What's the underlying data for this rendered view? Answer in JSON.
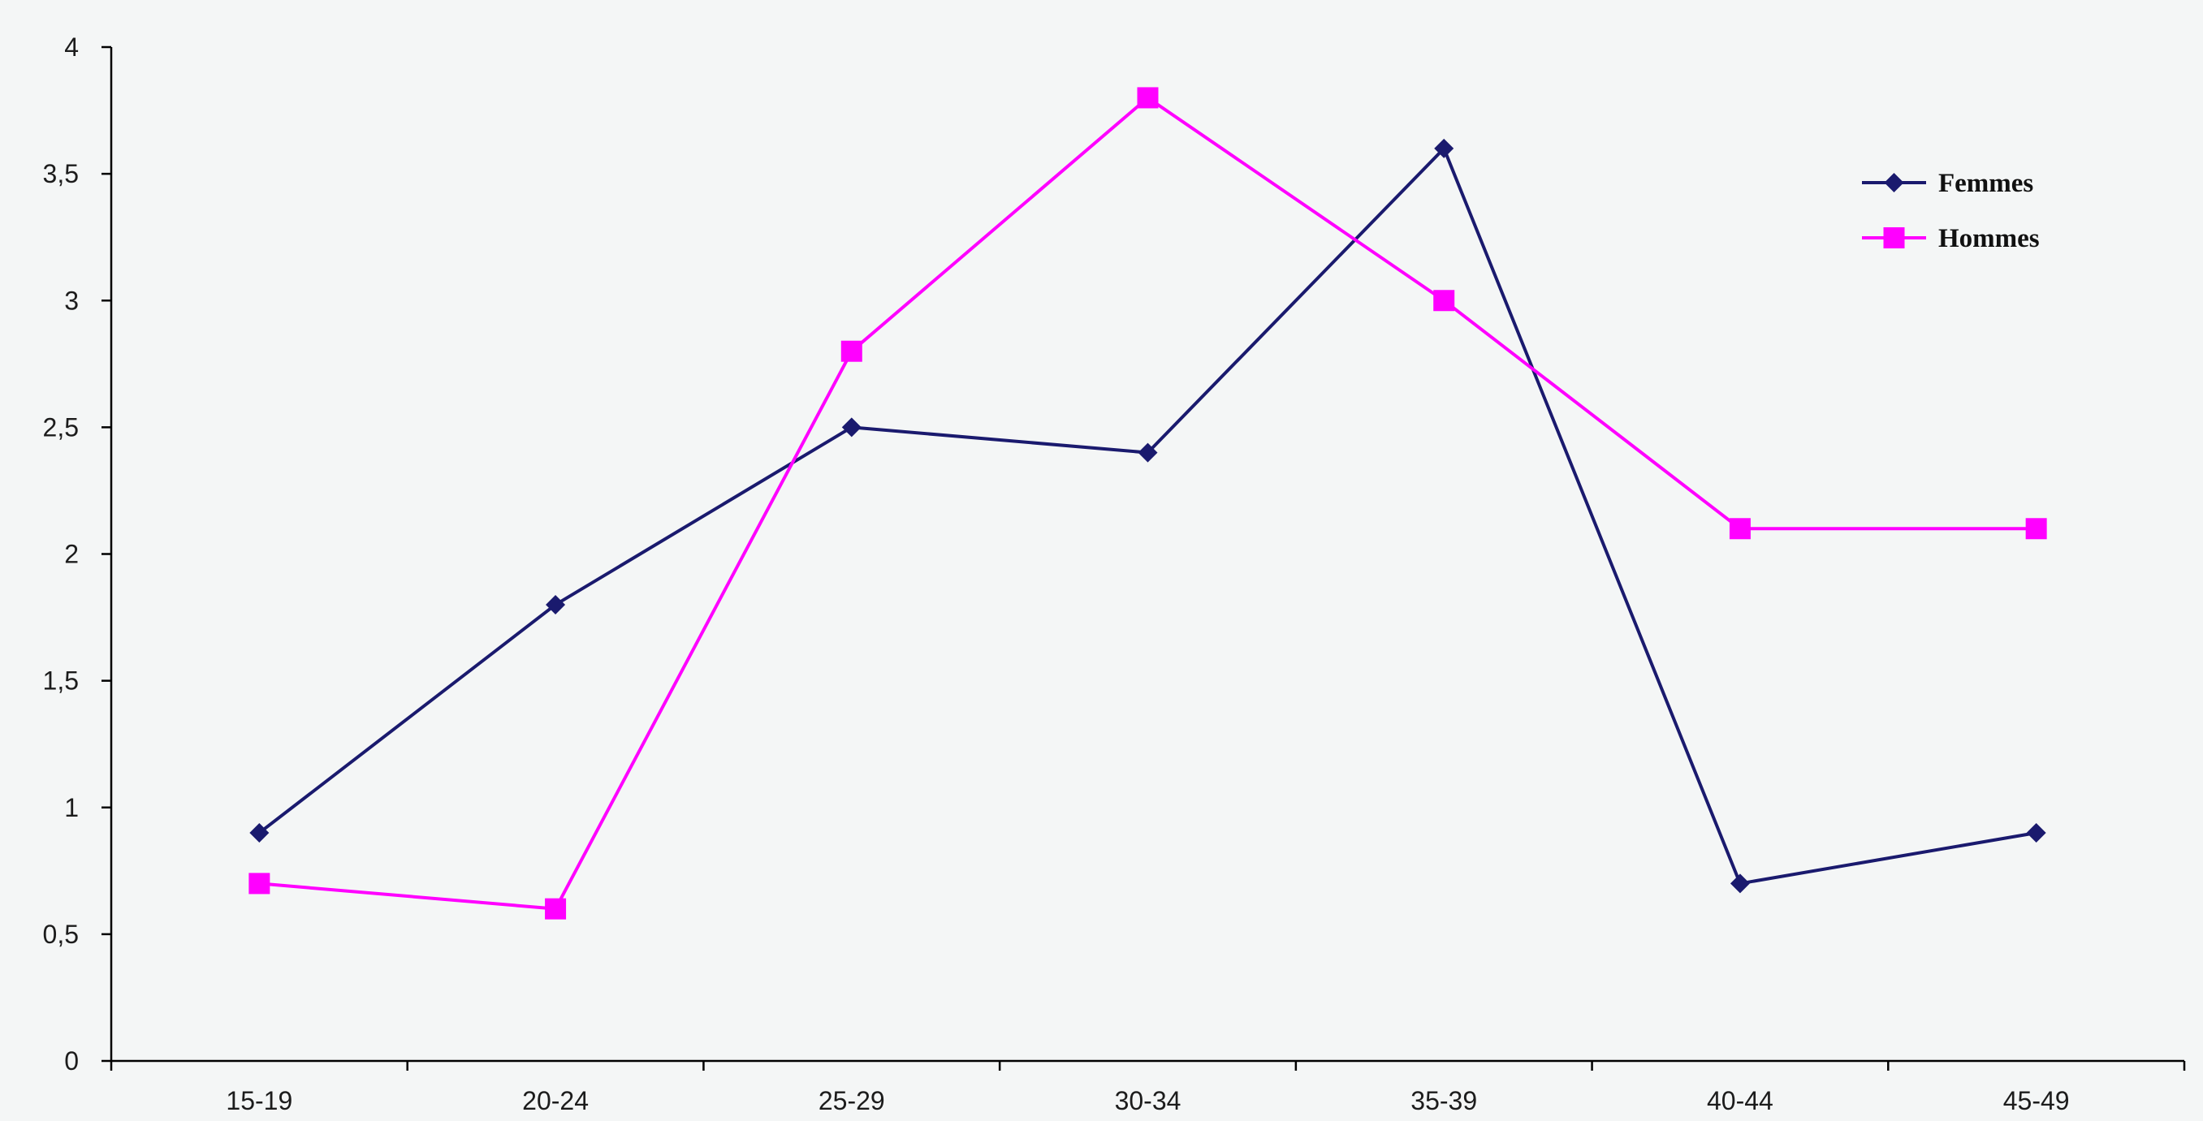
{
  "chart_data": {
    "type": "line",
    "title": "",
    "xlabel": "",
    "ylabel": "",
    "categories": [
      "15-19",
      "20-24",
      "25-29",
      "30-34",
      "35-39",
      "40-44",
      "45-49"
    ],
    "ylim": [
      0,
      4
    ],
    "yticks": [
      0,
      0.5,
      1,
      1.5,
      2,
      2.5,
      3,
      3.5,
      4
    ],
    "ytick_labels": [
      "0",
      "0,5",
      "1",
      "1,5",
      "2",
      "2,5",
      "3",
      "3,5",
      "4"
    ],
    "grid": false,
    "legend_position": "top-right",
    "series": [
      {
        "name": "Femmes",
        "color": "#1a1a6e",
        "marker": "diamond",
        "values": [
          0.9,
          1.8,
          2.5,
          2.4,
          3.6,
          0.7,
          0.9
        ]
      },
      {
        "name": "Hommes",
        "color": "#ff00ff",
        "marker": "square",
        "values": [
          0.7,
          0.6,
          2.8,
          3.8,
          3.0,
          2.1,
          2.1
        ]
      }
    ]
  }
}
